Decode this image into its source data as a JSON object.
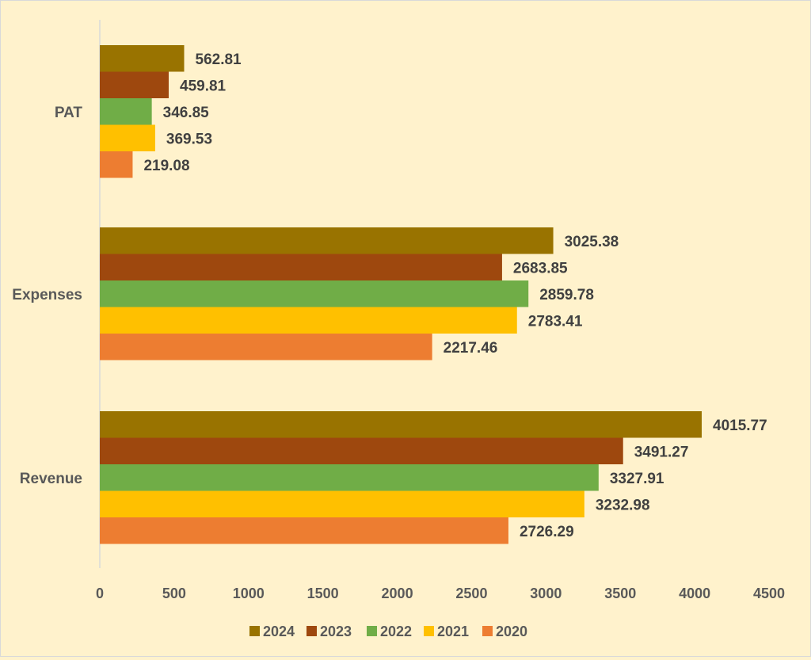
{
  "chart_data": {
    "type": "bar",
    "orientation": "horizontal",
    "title": "",
    "xlabel": "",
    "ylabel": "",
    "categories": [
      "PAT",
      "Expenses",
      "Revenue"
    ],
    "xlim": [
      0,
      4500
    ],
    "xticks": [
      0,
      500,
      1000,
      1500,
      2000,
      2500,
      3000,
      3500,
      4000,
      4500
    ],
    "grid": false,
    "legend_position": "bottom",
    "series": [
      {
        "name": "2024",
        "color": "#997300",
        "values": [
          562.81,
          3025.38,
          4015.77
        ],
        "labels": [
          "562.81",
          "3025.38",
          "4015.77"
        ]
      },
      {
        "name": "2023",
        "color": "#9e480e",
        "values": [
          459.81,
          2683.85,
          3491.27
        ],
        "labels": [
          "459.81",
          "2683.85",
          "3491.27"
        ]
      },
      {
        "name": "2022",
        "color": "#70ad47",
        "values": [
          346.85,
          2859.78,
          3327.91
        ],
        "labels": [
          "346.85",
          "2859.78",
          "3327.91"
        ]
      },
      {
        "name": "2021",
        "color": "#ffc000",
        "values": [
          369.53,
          2783.41,
          3232.98
        ],
        "labels": [
          "369.53",
          "2783.41",
          "3232.98"
        ]
      },
      {
        "name": "2020",
        "color": "#ed7d31",
        "values": [
          219.08,
          2217.46,
          2726.29
        ],
        "labels": [
          "219.08",
          "2217.46",
          "2726.29"
        ]
      }
    ]
  }
}
